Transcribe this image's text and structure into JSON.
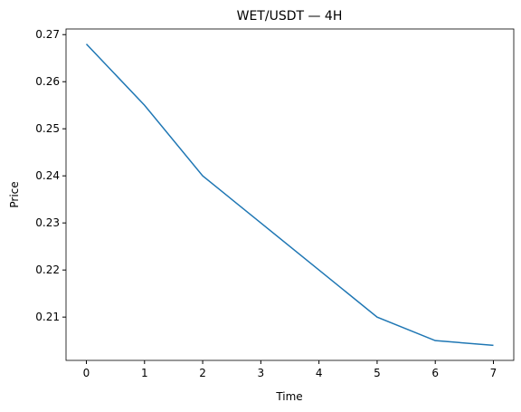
{
  "chart_data": {
    "type": "line",
    "title": "WET/USDT — 4H",
    "xlabel": "Time",
    "ylabel": "Price",
    "x": [
      0,
      1,
      2,
      3,
      4,
      5,
      6,
      7
    ],
    "series": [
      {
        "name": "WET/USDT",
        "color": "#1f77b4",
        "values": [
          0.268,
          0.255,
          0.24,
          0.23,
          0.22,
          0.21,
          0.205,
          0.204
        ]
      }
    ],
    "xlim": [
      -0.35,
      7.35
    ],
    "xticks": [
      0,
      1,
      2,
      3,
      4,
      5,
      6,
      7
    ],
    "ylim": [
      0.2008,
      0.2712
    ],
    "yticks": [
      0.21,
      0.22,
      0.23,
      0.24,
      0.25,
      0.26,
      0.27
    ],
    "grid": false
  }
}
